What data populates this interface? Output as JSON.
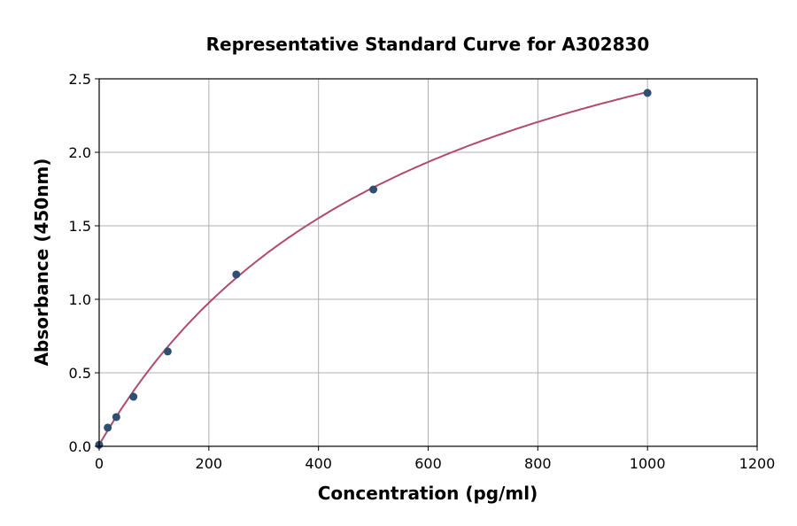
{
  "chart_data": {
    "type": "scatter",
    "title": "Representative Standard Curve for A302830",
    "xlabel": "Concentration (pg/ml)",
    "ylabel": "Absorbance (450nm)",
    "xlim": [
      0,
      1200
    ],
    "ylim": [
      0,
      2.5
    ],
    "xticks": [
      0,
      200,
      400,
      600,
      800,
      1000,
      1200
    ],
    "yticks": [
      0.0,
      0.5,
      1.0,
      1.5,
      2.0,
      2.5
    ],
    "xtick_labels": [
      "0",
      "200",
      "400",
      "600",
      "800",
      "1000",
      "1200"
    ],
    "ytick_labels": [
      "0.0",
      "0.5",
      "1.0",
      "1.5",
      "2.0",
      "2.5"
    ],
    "grid": true,
    "points": {
      "x": [
        0,
        15.6,
        31.25,
        62.5,
        125,
        250,
        500,
        1000
      ],
      "y": [
        0.01,
        0.127,
        0.199,
        0.337,
        0.645,
        1.169,
        1.747,
        2.404
      ],
      "color": "#2e4e72"
    },
    "fit_curve": {
      "color": "#b04a6e",
      "x_range": [
        0,
        1000
      ]
    }
  }
}
